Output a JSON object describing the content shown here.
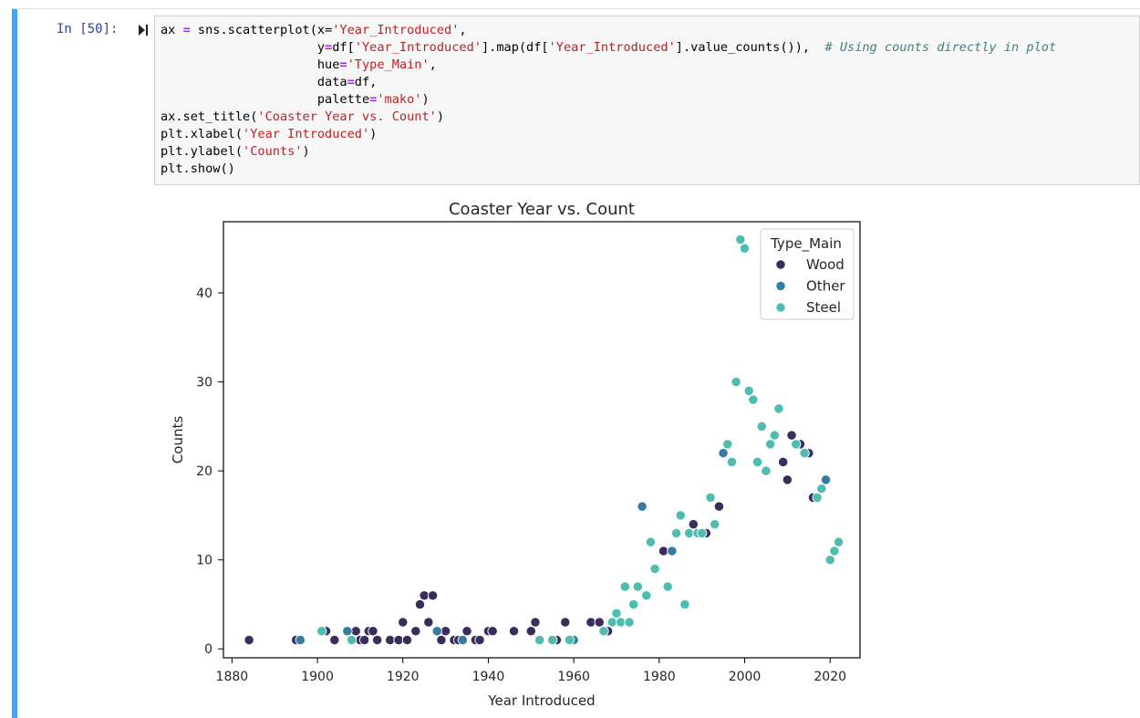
{
  "cell": {
    "prompt": "In [50]:",
    "code_lines": [
      [
        {
          "t": "ax "
        },
        {
          "t": "=",
          "k": "o"
        },
        {
          "t": " sns.scatterplot(x="
        },
        {
          "t": "'Year_Introduced'",
          "k": "s"
        },
        {
          "t": ","
        }
      ],
      [
        {
          "t": "                     y"
        },
        {
          "t": "=",
          "k": "o"
        },
        {
          "t": "df["
        },
        {
          "t": "'Year_Introduced'",
          "k": "s"
        },
        {
          "t": "].map(df["
        },
        {
          "t": "'Year_Introduced'",
          "k": "s"
        },
        {
          "t": "].value_counts()),  "
        },
        {
          "t": "# Using counts directly in plot",
          "k": "c"
        }
      ],
      [
        {
          "t": "                     hue"
        },
        {
          "t": "=",
          "k": "o"
        },
        {
          "t": "'Type_Main'",
          "k": "s"
        },
        {
          "t": ","
        }
      ],
      [
        {
          "t": "                     data"
        },
        {
          "t": "=",
          "k": "o"
        },
        {
          "t": "df,"
        }
      ],
      [
        {
          "t": "                     palette"
        },
        {
          "t": "=",
          "k": "o"
        },
        {
          "t": "'mako'",
          "k": "s"
        },
        {
          "t": ")"
        }
      ],
      [
        {
          "t": "ax.set_title("
        },
        {
          "t": "'Coaster Year vs. Count'",
          "k": "s"
        },
        {
          "t": ")"
        }
      ],
      [
        {
          "t": "plt.xlabel("
        },
        {
          "t": "'Year Introduced'",
          "k": "s"
        },
        {
          "t": ")"
        }
      ],
      [
        {
          "t": "plt.ylabel("
        },
        {
          "t": "'Counts'",
          "k": "s"
        },
        {
          "t": ")"
        }
      ],
      [
        {
          "t": "plt.show()"
        }
      ]
    ]
  },
  "chart_data": {
    "type": "scatter",
    "title": "Coaster Year vs. Count",
    "xlabel": "Year Introduced",
    "ylabel": "Counts",
    "xlim": [
      1878,
      2027
    ],
    "ylim": [
      -1,
      48
    ],
    "xticks": [
      1880,
      1900,
      1920,
      1940,
      1960,
      1980,
      2000,
      2020
    ],
    "yticks": [
      0,
      10,
      20,
      30,
      40
    ],
    "grid": false,
    "legend": {
      "title": "Type_Main",
      "placement": "top-right"
    },
    "series": [
      {
        "name": "Wood",
        "color": "#3a2d5e",
        "points": [
          [
            1884,
            1
          ],
          [
            1895,
            1
          ],
          [
            1902,
            2
          ],
          [
            1904,
            1
          ],
          [
            1907,
            2
          ],
          [
            1909,
            2
          ],
          [
            1910,
            1
          ],
          [
            1911,
            1
          ],
          [
            1912,
            2
          ],
          [
            1913,
            2
          ],
          [
            1914,
            1
          ],
          [
            1917,
            1
          ],
          [
            1919,
            1
          ],
          [
            1920,
            3
          ],
          [
            1921,
            1
          ],
          [
            1923,
            2
          ],
          [
            1924,
            5
          ],
          [
            1925,
            6
          ],
          [
            1926,
            3
          ],
          [
            1927,
            6
          ],
          [
            1928,
            2
          ],
          [
            1929,
            1
          ],
          [
            1930,
            2
          ],
          [
            1932,
            1
          ],
          [
            1933,
            1
          ],
          [
            1935,
            2
          ],
          [
            1937,
            1
          ],
          [
            1938,
            1
          ],
          [
            1940,
            2
          ],
          [
            1941,
            2
          ],
          [
            1946,
            2
          ],
          [
            1950,
            2
          ],
          [
            1951,
            3
          ],
          [
            1956,
            1
          ],
          [
            1958,
            3
          ],
          [
            1964,
            3
          ],
          [
            1966,
            3
          ],
          [
            1968,
            2
          ],
          [
            1981,
            11
          ],
          [
            1988,
            14
          ],
          [
            1991,
            13
          ],
          [
            1994,
            16
          ],
          [
            2009,
            21
          ],
          [
            2010,
            19
          ],
          [
            2011,
            24
          ],
          [
            2013,
            23
          ],
          [
            2015,
            22
          ],
          [
            2016,
            17
          ]
        ]
      },
      {
        "name": "Other",
        "color": "#357ba3",
        "points": [
          [
            1896,
            1
          ],
          [
            1907,
            2
          ],
          [
            1928,
            2
          ],
          [
            1934,
            1
          ],
          [
            1960,
            1
          ],
          [
            1976,
            16
          ],
          [
            1983,
            11
          ],
          [
            1995,
            22
          ],
          [
            2019,
            19
          ]
        ]
      },
      {
        "name": "Steel",
        "color": "#4ebdaf",
        "points": [
          [
            1901,
            2
          ],
          [
            1908,
            1
          ],
          [
            1952,
            1
          ],
          [
            1955,
            1
          ],
          [
            1959,
            1
          ],
          [
            1967,
            2
          ],
          [
            1969,
            3
          ],
          [
            1970,
            4
          ],
          [
            1971,
            3
          ],
          [
            1972,
            7
          ],
          [
            1973,
            3
          ],
          [
            1974,
            5
          ],
          [
            1975,
            7
          ],
          [
            1977,
            6
          ],
          [
            1978,
            12
          ],
          [
            1979,
            9
          ],
          [
            1982,
            7
          ],
          [
            1984,
            13
          ],
          [
            1985,
            15
          ],
          [
            1986,
            5
          ],
          [
            1987,
            13
          ],
          [
            1989,
            13
          ],
          [
            1990,
            13
          ],
          [
            1992,
            17
          ],
          [
            1993,
            14
          ],
          [
            1996,
            23
          ],
          [
            1997,
            21
          ],
          [
            1998,
            30
          ],
          [
            1999,
            46
          ],
          [
            2000,
            45
          ],
          [
            2001,
            29
          ],
          [
            2002,
            28
          ],
          [
            2003,
            21
          ],
          [
            2004,
            25
          ],
          [
            2005,
            20
          ],
          [
            2006,
            23
          ],
          [
            2007,
            24
          ],
          [
            2008,
            27
          ],
          [
            2012,
            23
          ],
          [
            2014,
            22
          ],
          [
            2017,
            17
          ],
          [
            2018,
            18
          ],
          [
            2020,
            10
          ],
          [
            2021,
            11
          ],
          [
            2022,
            12
          ]
        ]
      }
    ]
  }
}
